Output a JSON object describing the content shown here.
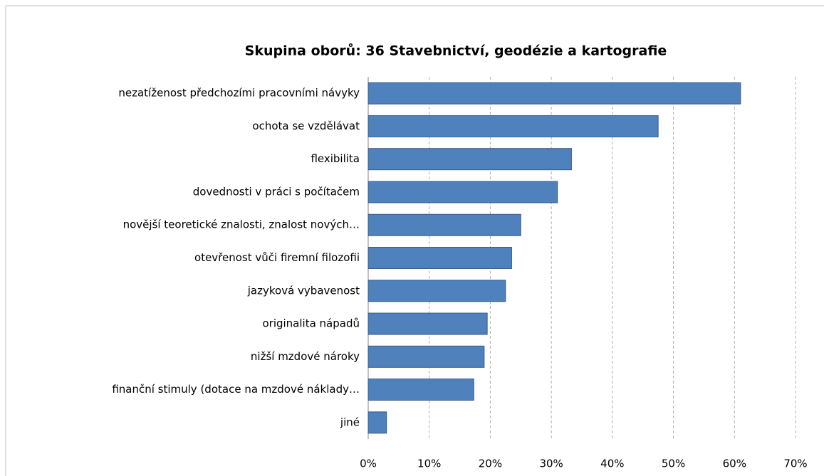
{
  "chart_data": {
    "type": "bar",
    "orientation": "horizontal",
    "title": "Skupina oborů: 36 Stavebnictví, geodézie a kartografie",
    "categories": [
      "nezatíženost předchozími pracovními návyky",
      "ochota se vzdělávat",
      "flexibilita",
      "dovednosti v práci s počítačem",
      "novější teoretické znalosti, znalost nových…",
      "otevřenost vůči firemní filozofii",
      "jazyková vybavenost",
      "originalita nápadů",
      "nižší mzdové nároky",
      "finanční stimuly (dotace na mzdové náklady…",
      "jiné"
    ],
    "values": [
      61,
      47.5,
      33.3,
      31,
      25,
      23.5,
      22.5,
      19.5,
      19,
      17.3,
      3
    ],
    "color": "#4f81bd",
    "xlim": [
      0,
      70
    ],
    "xticks": [
      {
        "value": 0,
        "label": "0%"
      },
      {
        "value": 10,
        "label": "10%"
      },
      {
        "value": 20,
        "label": "20%"
      },
      {
        "value": 30,
        "label": "30%"
      },
      {
        "value": 40,
        "label": "40%"
      },
      {
        "value": 50,
        "label": "50%"
      },
      {
        "value": 60,
        "label": "60%"
      },
      {
        "value": 70,
        "label": "70%"
      }
    ],
    "grid": true
  }
}
